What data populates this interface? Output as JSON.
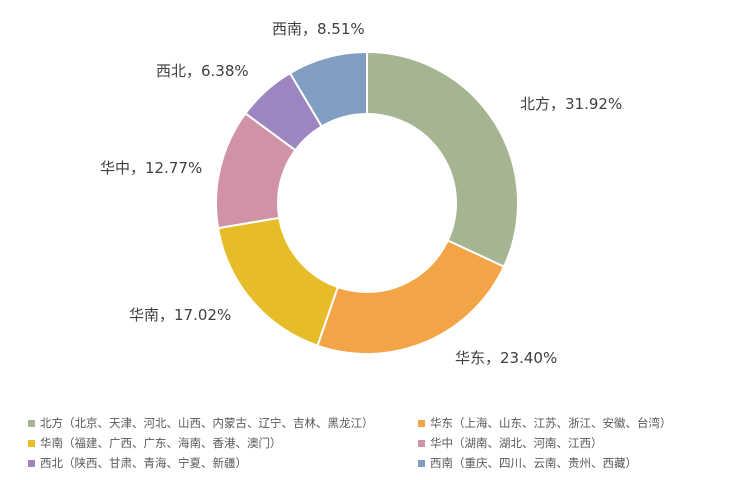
{
  "chart_data": {
    "type": "pie",
    "variant": "donut",
    "title": "",
    "categories": [
      "北方",
      "华东",
      "华南",
      "华中",
      "西北",
      "西南"
    ],
    "values": [
      31.92,
      23.4,
      17.02,
      12.77,
      6.38,
      8.51
    ],
    "unit": "%",
    "data_labels": [
      "北方，31.92%",
      "华东，23.40%",
      "华南，17.02%",
      "华中，12.77%",
      "西北，6.38%",
      "西南，8.51%"
    ],
    "colors": [
      "#A5B592",
      "#F3A447",
      "#E7BC29",
      "#D092A7",
      "#9C85C0",
      "#809EC2"
    ],
    "legend": {
      "placement": "bottom",
      "entries": [
        "北方（北京、天津、河北、山西、内蒙古、辽宁、吉林、黑龙江）",
        "华东（上海、山东、江苏、浙江、安徽、台湾）",
        "华南（福建、广西、广东、海南、香港、澳门）",
        "华中（湖南、湖北、河南、江西）",
        "西北（陕西、甘肃、青海、宁夏、新疆）",
        "西南（重庆、四川、云南、贵州、西藏）"
      ]
    },
    "start_angle_deg": 0,
    "direction": "clockwise"
  }
}
